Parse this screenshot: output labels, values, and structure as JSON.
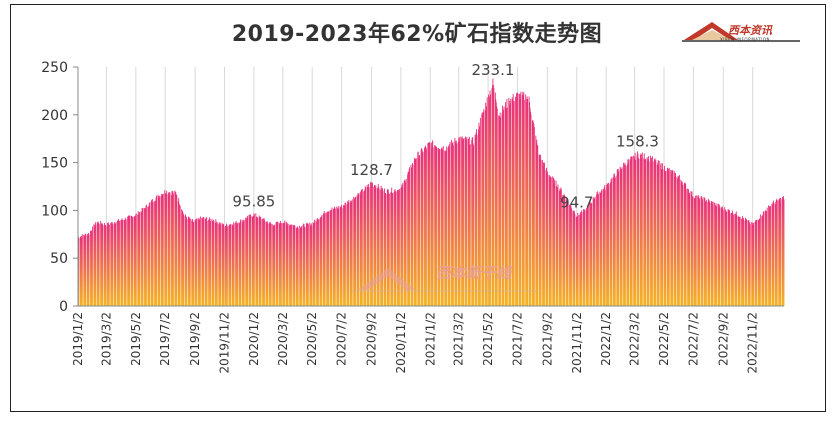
{
  "logo": {
    "name": "西本资讯",
    "subtitle": "XIBEN INFORMATION"
  },
  "watermark": {
    "text": "西本新干线"
  },
  "chart_data": {
    "type": "bar",
    "title": "2019-2023年62%矿石指数走势图",
    "xlabel": "",
    "ylabel": "",
    "ylim": [
      0,
      250
    ],
    "yticks": [
      0,
      50,
      100,
      150,
      200,
      250
    ],
    "grid": "vertical",
    "x_tick_labels": [
      "2019/1/2",
      "2019/3/2",
      "2019/5/2",
      "2019/7/2",
      "2019/9/2",
      "2019/11/2",
      "2020/1/2",
      "2020/3/2",
      "2020/5/2",
      "2020/7/2",
      "2020/9/2",
      "2020/11/2",
      "2021/1/2",
      "2021/3/2",
      "2021/5/2",
      "2021/7/2",
      "2021/9/2",
      "2021/11/2",
      "2022/1/2",
      "2022/3/2",
      "2022/5/2",
      "2022/7/2",
      "2022/9/2",
      "2022/11/2"
    ],
    "x_range": [
      "2019-01-02",
      "2023-01-06"
    ],
    "series": [
      {
        "points": [
          [
            "2019-01-02",
            72
          ],
          [
            "2019-01-25",
            76
          ],
          [
            "2019-02-10",
            88
          ],
          [
            "2019-03-02",
            85
          ],
          [
            "2019-04-02",
            90
          ],
          [
            "2019-05-02",
            95
          ],
          [
            "2019-05-20",
            102
          ],
          [
            "2019-06-10",
            112
          ],
          [
            "2019-07-02",
            120
          ],
          [
            "2019-07-25",
            118
          ],
          [
            "2019-08-10",
            95
          ],
          [
            "2019-08-30",
            88
          ],
          [
            "2019-09-15",
            92
          ],
          [
            "2019-10-10",
            90
          ],
          [
            "2019-11-02",
            84
          ],
          [
            "2019-12-02",
            88
          ],
          [
            "2020-01-02",
            95.85
          ],
          [
            "2020-02-10",
            85
          ],
          [
            "2020-03-02",
            88
          ],
          [
            "2020-04-02",
            83
          ],
          [
            "2020-05-02",
            86
          ],
          [
            "2020-06-02",
            100
          ],
          [
            "2020-07-02",
            104
          ],
          [
            "2020-08-10",
            118
          ],
          [
            "2020-09-02",
            128.7
          ],
          [
            "2020-10-02",
            120
          ],
          [
            "2020-11-02",
            122
          ],
          [
            "2020-12-02",
            155
          ],
          [
            "2021-01-02",
            170
          ],
          [
            "2021-02-02",
            165
          ],
          [
            "2021-03-02",
            175
          ],
          [
            "2021-04-02",
            172
          ],
          [
            "2021-05-12",
            233.1
          ],
          [
            "2021-05-25",
            200
          ],
          [
            "2021-06-15",
            215
          ],
          [
            "2021-07-02",
            220
          ],
          [
            "2021-07-25",
            218
          ],
          [
            "2021-08-15",
            160
          ],
          [
            "2021-09-02",
            140
          ],
          [
            "2021-10-02",
            120
          ],
          [
            "2021-11-02",
            94.7
          ],
          [
            "2021-11-20",
            100
          ],
          [
            "2021-12-10",
            115
          ],
          [
            "2022-01-02",
            125
          ],
          [
            "2022-02-02",
            145
          ],
          [
            "2022-03-08",
            158.3
          ],
          [
            "2022-04-02",
            155
          ],
          [
            "2022-05-02",
            145
          ],
          [
            "2022-06-02",
            135
          ],
          [
            "2022-07-02",
            115
          ],
          [
            "2022-08-02",
            110
          ],
          [
            "2022-09-02",
            102
          ],
          [
            "2022-10-02",
            96
          ],
          [
            "2022-11-02",
            85
          ],
          [
            "2022-11-25",
            98
          ],
          [
            "2022-12-15",
            108
          ],
          [
            "2023-01-06",
            113
          ]
        ]
      }
    ],
    "annotations": [
      {
        "label": "95.85",
        "x": "2020-01-02",
        "y": 95.85
      },
      {
        "label": "128.7",
        "x": "2020-09-02",
        "y": 128.7
      },
      {
        "label": "233.1",
        "x": "2021-05-12",
        "y": 233.1
      },
      {
        "label": "94.7",
        "x": "2021-11-02",
        "y": 94.7
      },
      {
        "label": "158.3",
        "x": "2022-03-08",
        "y": 158.3
      }
    ],
    "colors": {
      "bar_top": "#e8317a",
      "bar_bottom": "#f5b324",
      "axis": "#888888",
      "grid": "#d9d9d9"
    }
  }
}
